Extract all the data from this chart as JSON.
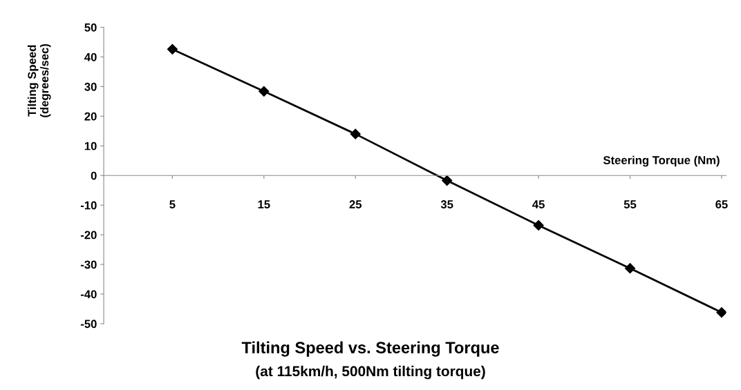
{
  "chart_data": {
    "type": "line",
    "title": "Tilting Speed vs. Steering Torque",
    "subtitle": "(at 115km/h, 500Nm tilting torque)",
    "xlabel": "Steering Torque (Nm)",
    "ylabel": "Tilting Speed\n(degrees/sec)",
    "categories": [
      "5",
      "15",
      "25",
      "35",
      "45",
      "55",
      "65"
    ],
    "series": [
      {
        "color": "#000000",
        "values": [
          42.6,
          28.4,
          14.0,
          -1.7,
          -16.8,
          -31.3,
          -46.2
        ]
      }
    ],
    "ylim": [
      -50,
      50
    ],
    "yticks": [
      -50,
      -40,
      -30,
      -20,
      -10,
      0,
      10,
      20,
      30,
      40,
      50
    ],
    "marker": "diamond",
    "line_style": "solid",
    "grid": false,
    "legend": false
  }
}
